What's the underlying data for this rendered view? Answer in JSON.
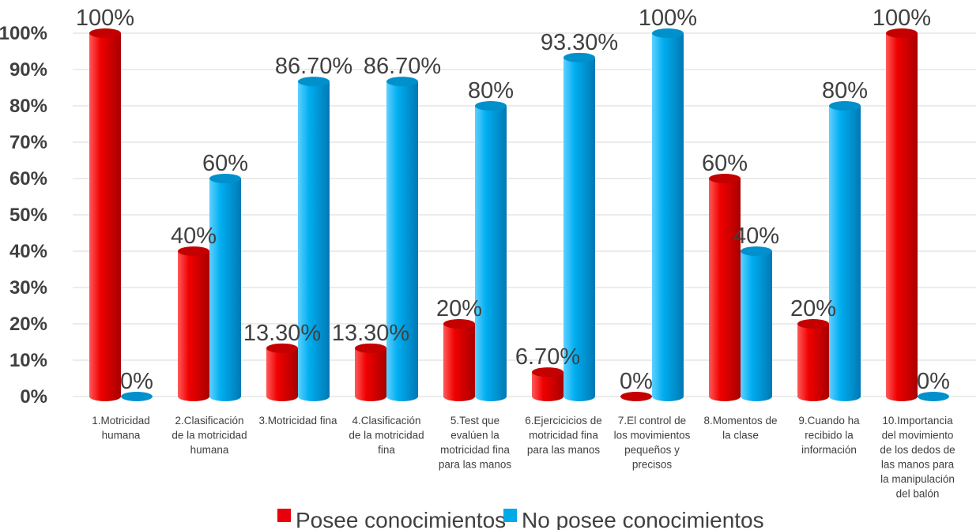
{
  "chart_data": {
    "type": "bar",
    "ylim": [
      0,
      100
    ],
    "grid": true,
    "legend_position": "bottom",
    "y_ticks": [
      "0%",
      "10%",
      "20%",
      "30%",
      "40%",
      "50%",
      "60%",
      "70%",
      "80%",
      "90%",
      "100%"
    ],
    "categories": [
      [
        "1.Motricidad",
        "humana"
      ],
      [
        "2.Clasificación",
        "de la motricidad",
        "humana"
      ],
      [
        "3.Motricidad fina"
      ],
      [
        "4.Clasificación",
        "de la motricidad",
        "fina"
      ],
      [
        "5.Test que",
        "evalúen la",
        "motricidad fina",
        "para las manos"
      ],
      [
        "6.Ejercicicios de",
        "motricidad fina",
        "para las manos"
      ],
      [
        "7.El control de",
        "los movimientos",
        "pequeños y",
        "precisos"
      ],
      [
        "8.Momentos de",
        "la clase"
      ],
      [
        "9.Cuando ha",
        "recibido la",
        "información"
      ],
      [
        "10.Importancia",
        "del movimiento",
        "de los dedos de",
        "las manos para",
        "la manipulación",
        "del balón"
      ]
    ],
    "series": [
      {
        "name": "Posee conocimientos",
        "color": "#e8000b",
        "values": [
          100,
          40,
          13.3,
          13.3,
          20,
          6.7,
          0,
          60,
          20,
          100
        ],
        "labels": [
          "100%",
          "40%",
          "13.30%",
          "13.30%",
          "20%",
          "6.70%",
          "0%",
          "60%",
          "20%",
          "100%"
        ]
      },
      {
        "name": "No posee conocimientos",
        "color": "#00a9e8",
        "values": [
          0,
          60,
          86.7,
          86.7,
          80,
          93.3,
          100,
          40,
          80,
          0
        ],
        "labels": [
          "0%",
          "60%",
          "86.70%",
          "86.70%",
          "80%",
          "93.30%",
          "100%",
          "40%",
          "80%",
          "0%"
        ]
      }
    ]
  }
}
